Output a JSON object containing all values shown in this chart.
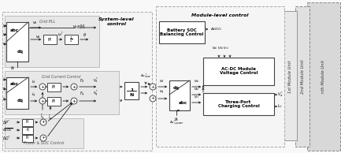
{
  "fig_width": 4.33,
  "fig_height": 1.94,
  "dpi": 100,
  "bg_color": "#ffffff",
  "light_gray": "#f0f0f0",
  "med_gray": "#e0e0e0",
  "dark_gray": "#c8c8c8",
  "box_white": "#ffffff",
  "edge_dark": "#444444",
  "edge_med": "#888888",
  "edge_light": "#aaaaaa",
  "region_bg": "#e8e8e8",
  "region_bg2": "#f2f2f2",
  "system_label": "System-level\ncontrol",
  "module_label": "Module-level control",
  "pll_label": "Grid PLL",
  "gcc_label": "Grid Current Control",
  "psoc_label": "Power & SOC Control",
  "bsoc_label": "Battery SOC\nBalancing Control",
  "acdc_label": "AC-DC Module\nVoltage Control",
  "threeport_label": "Three-Port\nCharging Control",
  "m1_label": "1st Module Unit",
  "m2_label": "2nd Module Unit",
  "mn_label": "nth Module Unit",
  "pi_label": "PI",
  "k_label": "K",
  "inv_n_label": "1/N",
  "int_label": "1/s"
}
